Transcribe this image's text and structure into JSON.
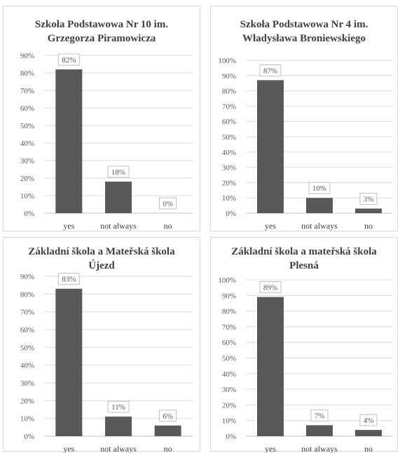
{
  "chart_data": [
    {
      "type": "bar",
      "title": [
        "Szkoła Podstawowa Nr 10 im.",
        "Grzegorza Piramowicza"
      ],
      "categories": [
        "yes",
        "not always",
        "no"
      ],
      "values": [
        82,
        18,
        0
      ],
      "data_labels": [
        "82%",
        "18%",
        "0%"
      ],
      "ylim": [
        0,
        90
      ],
      "ytick_labels": [
        "0%",
        "10%",
        "20%",
        "30%",
        "40%",
        "50%",
        "60%",
        "70%",
        "80%",
        "90%"
      ],
      "grid": true,
      "bar_color": "#595959"
    },
    {
      "type": "bar",
      "title": [
        "Szkoła Podstawowa Nr 4 im.",
        "Władysława Broniewskiego"
      ],
      "categories": [
        "yes",
        "not always",
        "no"
      ],
      "values": [
        87,
        10,
        3
      ],
      "data_labels": [
        "87%",
        "10%",
        "3%"
      ],
      "ylim": [
        0,
        100
      ],
      "ytick_labels": [
        "0%",
        "10%",
        "20%",
        "30%",
        "40%",
        "50%",
        "60%",
        "70%",
        "80%",
        "90%",
        "100%"
      ],
      "grid": true,
      "bar_color": "#595959"
    },
    {
      "type": "bar",
      "title": [
        "Základní škola a Mateřská škola",
        "Újezd"
      ],
      "categories": [
        "yes",
        "not always",
        "no"
      ],
      "values": [
        83,
        11,
        6
      ],
      "data_labels": [
        "83%",
        "11%",
        "6%"
      ],
      "ylim": [
        0,
        90
      ],
      "ytick_labels": [
        "0%",
        "10%",
        "20%",
        "30%",
        "40%",
        "50%",
        "60%",
        "70%",
        "80%",
        "90%"
      ],
      "grid": true,
      "bar_color": "#595959"
    },
    {
      "type": "bar",
      "title": [
        "Základní škola a mateřská škola",
        "Plesná"
      ],
      "categories": [
        "yes",
        "not always",
        "no"
      ],
      "values": [
        89,
        7,
        4
      ],
      "data_labels": [
        "89%",
        "7%",
        "4%"
      ],
      "ylim": [
        0,
        100
      ],
      "ytick_labels": [
        "0%",
        "10%",
        "20%",
        "30%",
        "40%",
        "50%",
        "60%",
        "70%",
        "80%",
        "90%",
        "100%"
      ],
      "grid": true,
      "bar_color": "#595959"
    }
  ]
}
